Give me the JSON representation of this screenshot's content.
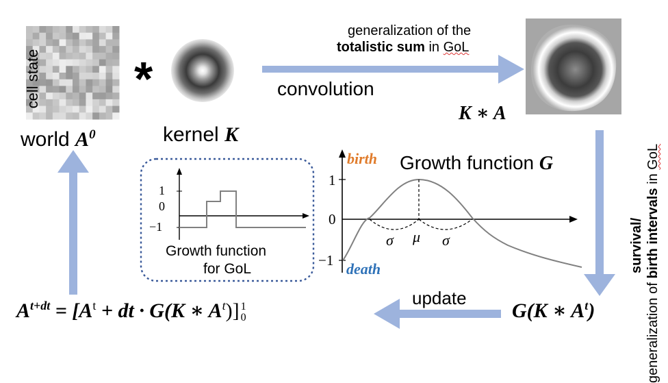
{
  "labels": {
    "cell_state": "cell state",
    "world": "world",
    "world_symbol": "A",
    "world_sup": "0",
    "star": "*",
    "kernel": "kernel",
    "kernel_symbol": "K",
    "convolution": "convolution",
    "conv_note_line1": "generalization of the",
    "conv_note_bold": "totalistic sum",
    "conv_note_in": " in ",
    "conv_note_gol": "GoL",
    "k_star_a": "K ∗ A",
    "growth_title": "Growth function",
    "growth_symbol": "G",
    "birth": "birth",
    "death": "death",
    "y_1": "1",
    "y_0": "0",
    "y_m1": "−1",
    "sigma": "σ",
    "mu": "μ",
    "inset_y1": "1",
    "inset_y0": "0",
    "inset_ym1": "−1",
    "inset_caption_1": "Growth function",
    "inset_caption_2": "for GoL",
    "right_note_prefix": "generalization of ",
    "right_note_bold1": "survival/",
    "right_note_bold2": "birth intervals",
    "right_note_in": " in ",
    "right_note_gol": "GoL",
    "update": "update",
    "g_k_a": "G(K ∗ A",
    "g_k_a_sup": "t",
    "g_k_a_close": ")",
    "formula_lhs": "A",
    "formula_lhs_sup": "t+dt",
    "formula_rhs": "= [A",
    "formula_rhs_t": "t",
    "formula_rhs_mid": " + dt · G(K ∗ A",
    "formula_rhs_t2": "t",
    "formula_rhs_end": ")]",
    "formula_upper": "1",
    "formula_lower": "0"
  },
  "colors": {
    "arrow": "#9db3dd",
    "birth": "#e07b2a",
    "death": "#2f72b8",
    "curve": "#808080",
    "inset_border": "#3a5a9a"
  },
  "chart_data": [
    {
      "type": "line",
      "title": "Growth function G",
      "series": [],
      "x_markers": [
        "σ",
        "μ",
        "σ"
      ],
      "y_ticks": [
        1,
        0,
        -1
      ],
      "shape": "bell curve from −1 up to 1 at μ, crossing 0 at μ±σ, then decaying toward −1"
    },
    {
      "type": "line",
      "title": "Growth function for GoL",
      "y_ticks": [
        1,
        0,
        -1
      ],
      "shape": "step function: −1, then 0, then 1, then back to −1"
    }
  ]
}
